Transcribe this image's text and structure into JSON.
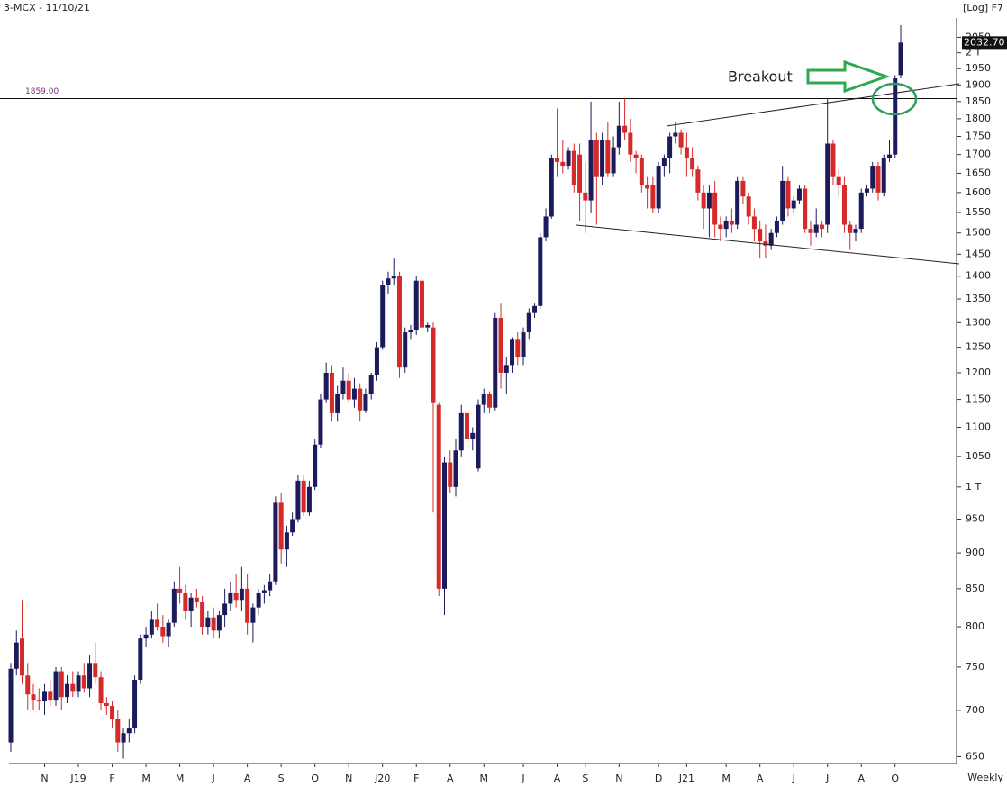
{
  "chart_data": {
    "type": "candlestick",
    "title": "3-MCX - 11/10/21",
    "scale_note": "[Log] F7",
    "period": "Weekly",
    "annotation": "Breakout",
    "log_scale": true,
    "up_color": "#1b1b5c",
    "down_color": "#d42a2a",
    "ylim": [
      643,
      2090
    ],
    "yticks": [
      650,
      700,
      750,
      800,
      850,
      900,
      950,
      {
        "value": 1000,
        "label": "1 T"
      },
      1050,
      1100,
      1150,
      1200,
      1250,
      1300,
      1350,
      1400,
      1450,
      1500,
      1550,
      1600,
      1650,
      1700,
      1750,
      1800,
      1850,
      1900,
      1950,
      {
        "value": 2000,
        "label": "2 T"
      },
      2050
    ],
    "hline": {
      "value": 1859,
      "label": "1859.00"
    },
    "last_price": {
      "value": 2032.7,
      "label": "2032.70"
    },
    "categories": [
      null,
      null,
      null,
      null,
      null,
      null,
      "N",
      null,
      null,
      null,
      null,
      null,
      "J19",
      null,
      null,
      null,
      null,
      null,
      "F",
      null,
      null,
      null,
      null,
      null,
      "M",
      null,
      null,
      null,
      null,
      null,
      "M",
      null,
      null,
      null,
      null,
      null,
      "J",
      null,
      null,
      null,
      null,
      null,
      "A",
      null,
      null,
      null,
      null,
      null,
      "S",
      null,
      null,
      null,
      null,
      null,
      "O",
      null,
      null,
      null,
      null,
      null,
      "N",
      null,
      null,
      null,
      null,
      null,
      "J20",
      null,
      null,
      null,
      null,
      null,
      "F",
      null,
      null,
      null,
      null,
      null,
      "A",
      null,
      null,
      null,
      null,
      null,
      "M",
      null,
      null,
      null,
      null,
      null,
      null,
      "J",
      null,
      null,
      null,
      null,
      null,
      "A",
      null,
      null,
      null,
      null,
      "S",
      null,
      null,
      null,
      null,
      null,
      "N",
      null,
      null,
      null,
      null,
      null,
      null,
      "D",
      null,
      null,
      null,
      null,
      "J21",
      null,
      null,
      null,
      null,
      null,
      null,
      "M",
      null,
      null,
      null,
      null,
      null,
      "A",
      null,
      null,
      null,
      null,
      null,
      "J",
      null,
      null,
      null,
      null,
      null,
      "J",
      null,
      null,
      null,
      null,
      null,
      "A",
      null,
      null,
      null,
      null,
      null,
      "O",
      null
    ],
    "candles": [
      [
        665,
        755,
        655,
        748
      ],
      [
        748,
        795,
        740,
        780
      ],
      [
        785,
        835,
        730,
        740
      ],
      [
        740,
        755,
        700,
        718
      ],
      [
        718,
        730,
        700,
        712
      ],
      [
        712,
        725,
        700,
        710
      ],
      [
        710,
        730,
        695,
        722
      ],
      [
        722,
        735,
        705,
        712
      ],
      [
        712,
        750,
        705,
        745
      ],
      [
        745,
        750,
        700,
        715
      ],
      [
        715,
        740,
        708,
        730
      ],
      [
        730,
        745,
        715,
        722
      ],
      [
        722,
        745,
        715,
        740
      ],
      [
        740,
        755,
        720,
        725
      ],
      [
        725,
        765,
        715,
        755
      ],
      [
        755,
        780,
        730,
        738
      ],
      [
        738,
        745,
        700,
        708
      ],
      [
        708,
        715,
        695,
        705
      ],
      [
        705,
        710,
        680,
        690
      ],
      [
        690,
        700,
        655,
        665
      ],
      [
        665,
        680,
        648,
        675
      ],
      [
        675,
        690,
        665,
        680
      ],
      [
        680,
        740,
        675,
        735
      ],
      [
        735,
        790,
        730,
        785
      ],
      [
        785,
        800,
        775,
        790
      ],
      [
        790,
        820,
        785,
        810
      ],
      [
        810,
        830,
        795,
        800
      ],
      [
        800,
        815,
        780,
        788
      ],
      [
        788,
        810,
        775,
        805
      ],
      [
        805,
        860,
        800,
        850
      ],
      [
        850,
        880,
        830,
        845
      ],
      [
        845,
        855,
        810,
        820
      ],
      [
        820,
        845,
        800,
        838
      ],
      [
        838,
        850,
        825,
        832
      ],
      [
        832,
        840,
        790,
        800
      ],
      [
        800,
        820,
        790,
        812
      ],
      [
        812,
        825,
        785,
        795
      ],
      [
        795,
        820,
        785,
        815
      ],
      [
        815,
        850,
        800,
        830
      ],
      [
        830,
        860,
        820,
        845
      ],
      [
        845,
        870,
        825,
        835
      ],
      [
        835,
        880,
        820,
        850
      ],
      [
        850,
        870,
        790,
        805
      ],
      [
        805,
        830,
        780,
        825
      ],
      [
        825,
        850,
        815,
        845
      ],
      [
        845,
        855,
        830,
        848
      ],
      [
        848,
        870,
        840,
        860
      ],
      [
        860,
        985,
        855,
        975
      ],
      [
        975,
        990,
        885,
        905
      ],
      [
        905,
        940,
        880,
        930
      ],
      [
        930,
        960,
        925,
        950
      ],
      [
        950,
        1020,
        945,
        1010
      ],
      [
        1010,
        1020,
        955,
        960
      ],
      [
        960,
        1010,
        955,
        1000
      ],
      [
        1000,
        1080,
        995,
        1070
      ],
      [
        1070,
        1160,
        1065,
        1150
      ],
      [
        1150,
        1220,
        1145,
        1200
      ],
      [
        1200,
        1215,
        1110,
        1125
      ],
      [
        1125,
        1175,
        1110,
        1160
      ],
      [
        1160,
        1210,
        1150,
        1185
      ],
      [
        1185,
        1200,
        1145,
        1150
      ],
      [
        1150,
        1190,
        1135,
        1170
      ],
      [
        1170,
        1180,
        1110,
        1130
      ],
      [
        1130,
        1170,
        1125,
        1160
      ],
      [
        1160,
        1200,
        1150,
        1195
      ],
      [
        1195,
        1260,
        1185,
        1250
      ],
      [
        1250,
        1390,
        1245,
        1380
      ],
      [
        1380,
        1410,
        1360,
        1395
      ],
      [
        1395,
        1440,
        1380,
        1400
      ],
      [
        1400,
        1410,
        1190,
        1210
      ],
      [
        1210,
        1290,
        1200,
        1280
      ],
      [
        1280,
        1295,
        1265,
        1285
      ],
      [
        1285,
        1400,
        1275,
        1390
      ],
      [
        1390,
        1410,
        1270,
        1290
      ],
      [
        1290,
        1300,
        1280,
        1295
      ],
      [
        1290,
        1300,
        960,
        1145
      ],
      [
        1140,
        1145,
        840,
        850
      ],
      [
        850,
        1050,
        815,
        1040
      ],
      [
        1040,
        1060,
        990,
        1000
      ],
      [
        1000,
        1080,
        985,
        1060
      ],
      [
        1060,
        1140,
        1050,
        1125
      ],
      [
        1125,
        1150,
        950,
        1080
      ],
      [
        1080,
        1100,
        1060,
        1090
      ],
      [
        1030,
        1150,
        1025,
        1140
      ],
      [
        1140,
        1170,
        1125,
        1160
      ],
      [
        1160,
        1165,
        1125,
        1135
      ],
      [
        1135,
        1320,
        1130,
        1310
      ],
      [
        1310,
        1340,
        1170,
        1200
      ],
      [
        1200,
        1230,
        1160,
        1215
      ],
      [
        1215,
        1270,
        1200,
        1265
      ],
      [
        1265,
        1280,
        1215,
        1230
      ],
      [
        1230,
        1290,
        1215,
        1280
      ],
      [
        1280,
        1330,
        1265,
        1320
      ],
      [
        1320,
        1340,
        1310,
        1335
      ],
      [
        1335,
        1500,
        1330,
        1490
      ],
      [
        1490,
        1560,
        1480,
        1540
      ],
      [
        1540,
        1700,
        1535,
        1690
      ],
      [
        1690,
        1830,
        1640,
        1680
      ],
      [
        1680,
        1740,
        1650,
        1670
      ],
      [
        1670,
        1720,
        1660,
        1710
      ],
      [
        1710,
        1730,
        1600,
        1620
      ],
      [
        1700,
        1730,
        1530,
        1600
      ],
      [
        1600,
        1680,
        1500,
        1580
      ],
      [
        1580,
        1850,
        1550,
        1740
      ],
      [
        1740,
        1760,
        1520,
        1640
      ],
      [
        1640,
        1760,
        1620,
        1740
      ],
      [
        1740,
        1790,
        1640,
        1650
      ],
      [
        1650,
        1750,
        1640,
        1720
      ],
      [
        1720,
        1850,
        1700,
        1780
      ],
      [
        1780,
        1860,
        1740,
        1760
      ],
      [
        1760,
        1800,
        1680,
        1700
      ],
      [
        1700,
        1710,
        1650,
        1690
      ],
      [
        1690,
        1700,
        1600,
        1620
      ],
      [
        1620,
        1640,
        1560,
        1610
      ],
      [
        1620,
        1640,
        1550,
        1560
      ],
      [
        1560,
        1680,
        1550,
        1670
      ],
      [
        1670,
        1700,
        1640,
        1690
      ],
      [
        1690,
        1760,
        1650,
        1750
      ],
      [
        1750,
        1790,
        1730,
        1760
      ],
      [
        1760,
        1770,
        1700,
        1720
      ],
      [
        1720,
        1760,
        1640,
        1690
      ],
      [
        1690,
        1720,
        1640,
        1660
      ],
      [
        1660,
        1670,
        1580,
        1600
      ],
      [
        1600,
        1620,
        1510,
        1560
      ],
      [
        1560,
        1620,
        1490,
        1600
      ],
      [
        1600,
        1630,
        1490,
        1520
      ],
      [
        1520,
        1540,
        1480,
        1510
      ],
      [
        1510,
        1540,
        1490,
        1530
      ],
      [
        1530,
        1560,
        1500,
        1520
      ],
      [
        1520,
        1640,
        1510,
        1630
      ],
      [
        1630,
        1640,
        1570,
        1590
      ],
      [
        1590,
        1600,
        1520,
        1540
      ],
      [
        1540,
        1560,
        1480,
        1510
      ],
      [
        1510,
        1530,
        1440,
        1480
      ],
      [
        1480,
        1520,
        1440,
        1470
      ],
      [
        1470,
        1510,
        1460,
        1500
      ],
      [
        1500,
        1540,
        1490,
        1530
      ],
      [
        1530,
        1670,
        1520,
        1630
      ],
      [
        1630,
        1640,
        1540,
        1560
      ],
      [
        1560,
        1590,
        1550,
        1580
      ],
      [
        1580,
        1620,
        1570,
        1610
      ],
      [
        1610,
        1620,
        1500,
        1510
      ],
      [
        1510,
        1530,
        1470,
        1500
      ],
      [
        1500,
        1560,
        1490,
        1520
      ],
      [
        1520,
        1530,
        1490,
        1510
      ],
      [
        1520,
        1860,
        1500,
        1730
      ],
      [
        1730,
        1740,
        1620,
        1640
      ],
      [
        1640,
        1660,
        1590,
        1620
      ],
      [
        1620,
        1640,
        1500,
        1520
      ],
      [
        1520,
        1530,
        1460,
        1500
      ],
      [
        1500,
        1520,
        1480,
        1510
      ],
      [
        1510,
        1610,
        1500,
        1600
      ],
      [
        1600,
        1620,
        1590,
        1610
      ],
      [
        1610,
        1680,
        1600,
        1670
      ],
      [
        1670,
        1680,
        1580,
        1600
      ],
      [
        1600,
        1700,
        1590,
        1690
      ],
      [
        1690,
        1740,
        1680,
        1700
      ],
      [
        1700,
        1930,
        1690,
        1920
      ],
      [
        1930,
        2090,
        1920,
        2032.7
      ]
    ]
  }
}
